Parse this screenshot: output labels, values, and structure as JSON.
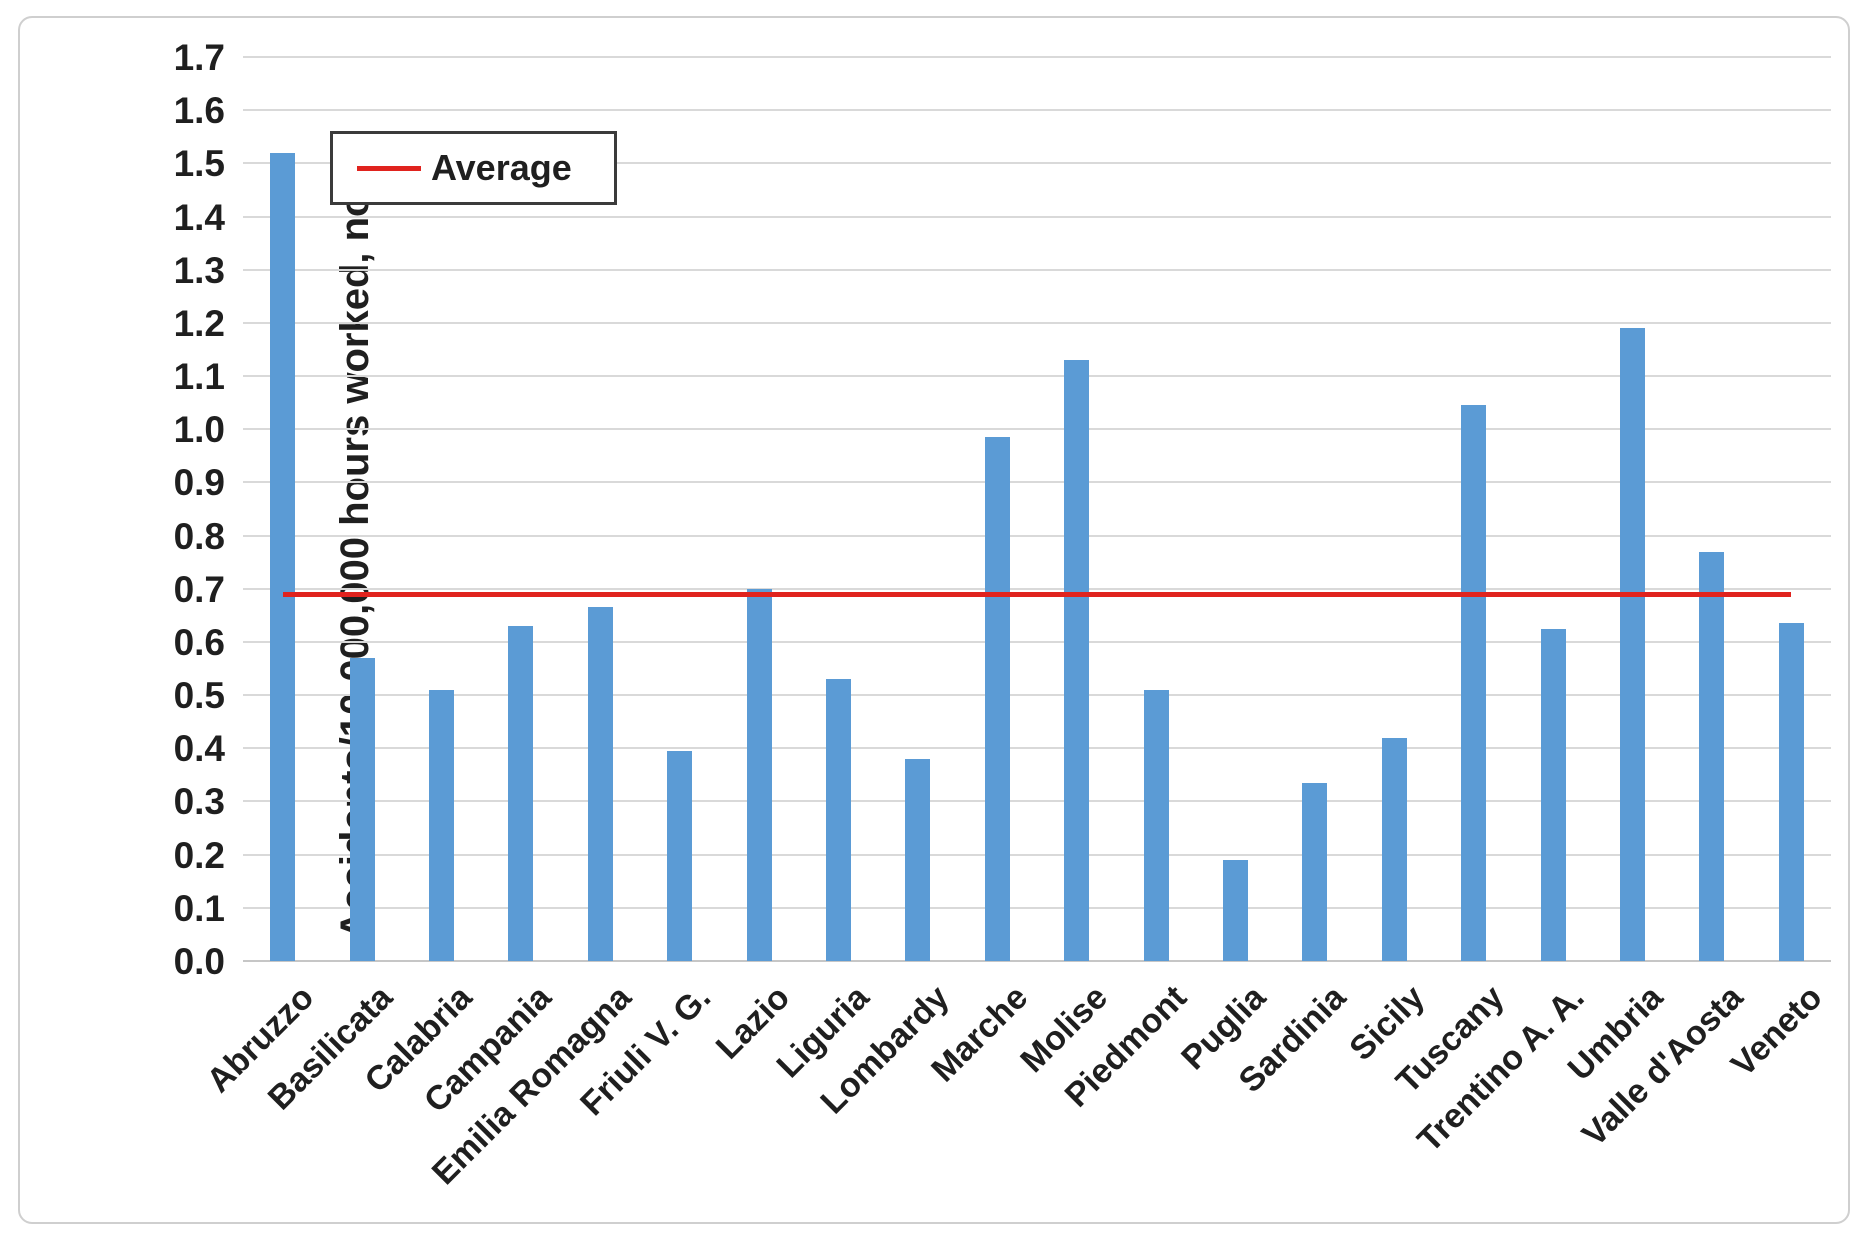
{
  "figure": {
    "background": "#ffffff",
    "frame_border_color": "#cfcfcf"
  },
  "chart_data": {
    "type": "bar",
    "title": "",
    "xlabel": "",
    "ylabel": "Accidents/10,000,000 hours worked, no",
    "ylim": [
      0.0,
      1.7
    ],
    "ytick_step": 0.1,
    "ytick_format_decimals": 1,
    "grid": true,
    "bar_color": "#5b9bd5",
    "gridline_color": "#d9d9d9",
    "categories": [
      "Abruzzo",
      "Basilicata",
      "Calabria",
      "Campania",
      "Emilia Romagna",
      "Friuli V. G.",
      "Lazio",
      "Liguria",
      "Lombardy",
      "Marche",
      "Molise",
      "Piedmont",
      "Puglia",
      "Sardinia",
      "Sicily",
      "Tuscany",
      "Trentino A. A.",
      "Umbria",
      "Valle d'Aosta",
      "Veneto"
    ],
    "values": [
      1.52,
      0.57,
      0.51,
      0.63,
      0.665,
      0.395,
      0.7,
      0.53,
      0.38,
      0.985,
      1.13,
      0.51,
      0.19,
      0.335,
      0.42,
      1.045,
      0.625,
      1.19,
      0.77,
      0.635
    ],
    "average_line": {
      "value": 0.69,
      "color": "#e0231e"
    },
    "legend": {
      "label": "Average",
      "position": "top-left"
    }
  }
}
